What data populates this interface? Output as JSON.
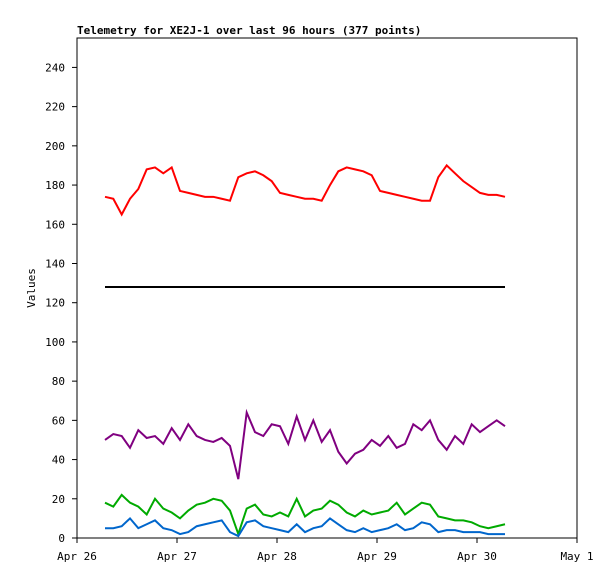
{
  "chart_data": {
    "type": "line",
    "title": "Telemetry for XE2J-1 over last 96 hours (377 points)",
    "ylabel": "Values",
    "x": [
      0.28,
      0.363,
      0.447,
      0.53,
      0.613,
      0.697,
      0.78,
      0.863,
      0.947,
      1.03,
      1.113,
      1.197,
      1.28,
      1.363,
      1.447,
      1.53,
      1.613,
      1.697,
      1.78,
      1.863,
      1.947,
      2.03,
      2.113,
      2.197,
      2.28,
      2.363,
      2.447,
      2.53,
      2.613,
      2.697,
      2.78,
      2.863,
      2.947,
      3.03,
      3.113,
      3.197,
      3.28,
      3.363,
      3.447,
      3.53,
      3.613,
      3.697,
      3.78,
      3.863,
      3.947,
      4.03,
      4.113,
      4.197,
      4.28
    ],
    "series": [
      {
        "color": "#ff0000",
        "values": [
          174,
          173,
          165,
          173,
          178,
          188,
          189,
          186,
          189,
          177,
          176,
          175,
          174,
          174,
          173,
          172,
          184,
          186,
          187,
          185,
          182,
          176,
          175,
          174,
          173,
          173,
          172,
          180,
          187,
          189,
          188,
          187,
          185,
          177,
          176,
          175,
          174,
          173,
          172,
          172,
          184,
          190,
          186,
          182,
          179,
          176,
          175,
          175,
          174
        ]
      },
      {
        "color": "#000000",
        "values": [
          128,
          128,
          128,
          128,
          128,
          128,
          128,
          128,
          128,
          128,
          128,
          128,
          128,
          128,
          128,
          128,
          128,
          128,
          128,
          128,
          128,
          128,
          128,
          128,
          128,
          128,
          128,
          128,
          128,
          128,
          128,
          128,
          128,
          128,
          128,
          128,
          128,
          128,
          128,
          128,
          128,
          128,
          128,
          128,
          128,
          128,
          128,
          128,
          128
        ]
      },
      {
        "color": "#800080",
        "values": [
          50,
          53,
          52,
          46,
          55,
          51,
          52,
          48,
          56,
          50,
          58,
          52,
          50,
          49,
          51,
          47,
          30,
          64,
          54,
          52,
          58,
          57,
          48,
          62,
          50,
          60,
          49,
          55,
          44,
          38,
          43,
          45,
          50,
          47,
          52,
          46,
          48,
          58,
          55,
          60,
          50,
          45,
          52,
          48,
          58,
          54,
          57,
          60,
          57
        ]
      },
      {
        "color": "#00aa00",
        "values": [
          18,
          16,
          22,
          18,
          16,
          12,
          20,
          15,
          13,
          10,
          14,
          17,
          18,
          20,
          19,
          14,
          2,
          15,
          17,
          12,
          11,
          13,
          11,
          20,
          11,
          14,
          15,
          19,
          17,
          13,
          11,
          14,
          12,
          13,
          14,
          18,
          12,
          15,
          18,
          17,
          11,
          10,
          9,
          9,
          8,
          6,
          5,
          6,
          7
        ]
      },
      {
        "color": "#0066cc",
        "values": [
          5,
          5,
          6,
          10,
          5,
          7,
          9,
          5,
          4,
          2,
          3,
          6,
          7,
          8,
          9,
          3,
          1,
          8,
          9,
          6,
          5,
          4,
          3,
          7,
          3,
          5,
          6,
          10,
          7,
          4,
          3,
          5,
          3,
          4,
          5,
          7,
          4,
          5,
          8,
          7,
          3,
          4,
          4,
          3,
          3,
          3,
          2,
          2,
          2
        ]
      }
    ],
    "xlim": [
      0,
      5
    ],
    "xticks": [
      {
        "value": 0,
        "label": "Apr 26"
      },
      {
        "value": 1,
        "label": "Apr 27"
      },
      {
        "value": 2,
        "label": "Apr 28"
      },
      {
        "value": 3,
        "label": "Apr 29"
      },
      {
        "value": 4,
        "label": "Apr 30"
      },
      {
        "value": 5,
        "label": "May 1"
      }
    ],
    "ylim": [
      0,
      255
    ],
    "yticks": [
      0,
      20,
      40,
      60,
      80,
      100,
      120,
      140,
      160,
      180,
      200,
      220,
      240
    ]
  }
}
